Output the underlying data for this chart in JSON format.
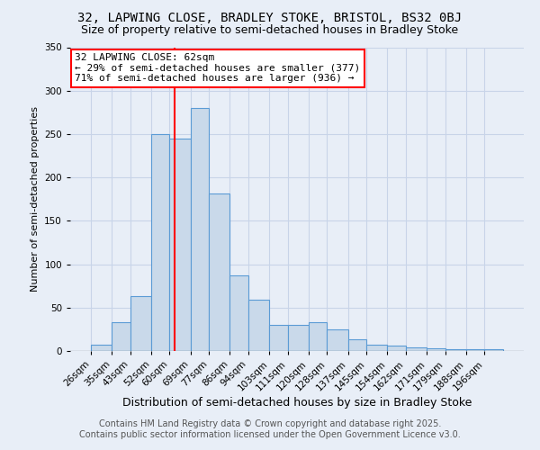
{
  "title1": "32, LAPWING CLOSE, BRADLEY STOKE, BRISTOL, BS32 0BJ",
  "title2": "Size of property relative to semi-detached houses in Bradley Stoke",
  "xlabel": "Distribution of semi-detached houses by size in Bradley Stoke",
  "ylabel": "Number of semi-detached properties",
  "bin_labels": [
    "26sqm",
    "35sqm",
    "43sqm",
    "52sqm",
    "60sqm",
    "69sqm",
    "77sqm",
    "86sqm",
    "94sqm",
    "103sqm",
    "111sqm",
    "120sqm",
    "128sqm",
    "137sqm",
    "145sqm",
    "154sqm",
    "162sqm",
    "171sqm",
    "179sqm",
    "188sqm",
    "196sqm"
  ],
  "bin_edges": [
    26,
    35,
    43,
    52,
    60,
    69,
    77,
    86,
    94,
    103,
    111,
    120,
    128,
    137,
    145,
    154,
    162,
    171,
    179,
    188,
    196
  ],
  "bar_heights": [
    7,
    33,
    63,
    250,
    245,
    280,
    182,
    87,
    59,
    30,
    30,
    33,
    25,
    13,
    7,
    6,
    4,
    3,
    2,
    2,
    2
  ],
  "bar_color": "#c9d9ea",
  "bar_edge_color": "#5b9bd5",
  "ref_line_x": 62,
  "ref_line_color": "red",
  "annotation_line1": "32 LAPWING CLOSE: 62sqm",
  "annotation_line2": "← 29% of semi-detached houses are smaller (377)",
  "annotation_line3": "71% of semi-detached houses are larger (936) →",
  "ylim": [
    0,
    350
  ],
  "yticks": [
    0,
    50,
    100,
    150,
    200,
    250,
    300,
    350
  ],
  "grid_color": "#c8d4e8",
  "background_color": "#e8eef7",
  "footer_line1": "Contains HM Land Registry data © Crown copyright and database right 2025.",
  "footer_line2": "Contains public sector information licensed under the Open Government Licence v3.0.",
  "title1_fontsize": 10,
  "title2_fontsize": 9,
  "xlabel_fontsize": 9,
  "ylabel_fontsize": 8,
  "tick_fontsize": 7.5,
  "annot_fontsize": 8,
  "footer_fontsize": 7
}
